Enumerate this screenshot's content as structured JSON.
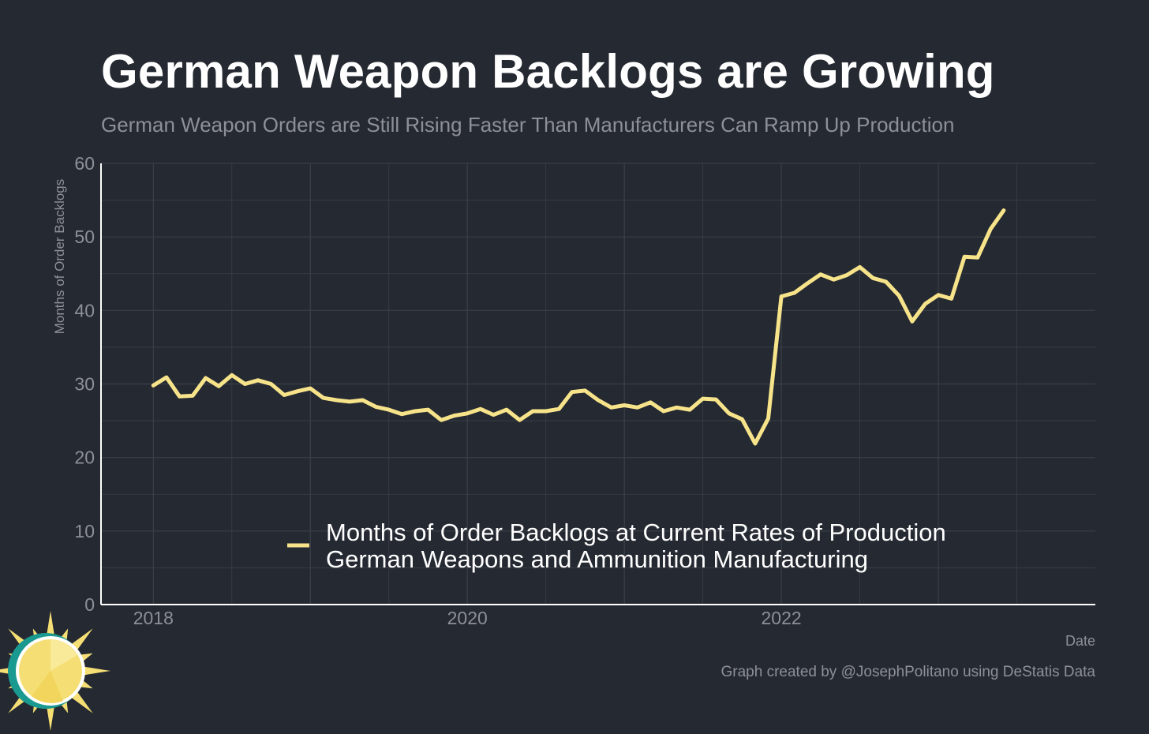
{
  "title": "German Weapon Backlogs are Growing",
  "subtitle": "German Weapon Orders are Still Rising Faster Than Manufacturers Can Ramp Up Production",
  "caption": "Graph created by @JosephPolitano using DeStatis Data",
  "colors": {
    "background": "#252932",
    "line": "#f7e48a",
    "grid": "#3b3f47",
    "axis": "#ffffff",
    "text_muted": "#8e9097",
    "logo_sun": "#f5df74",
    "logo_ring": "#1a9990"
  },
  "chart_data": {
    "type": "line",
    "title": "German Weapon Backlogs are Growing",
    "xlabel": "Date",
    "ylabel": "Months of Order Backlogs",
    "x_ticks": [
      "2018",
      "2020",
      "2022"
    ],
    "y_ticks": [
      0,
      10,
      20,
      30,
      40,
      50,
      60
    ],
    "ylim": [
      0,
      60
    ],
    "xlim": [
      "2017-09",
      "2024-01"
    ],
    "grid": true,
    "legend_placement": "bottom-center",
    "series": [
      {
        "name": "Months of Order Backlogs at Current Rates of Production\nGerman Weapons and Ammunition Manufacturing",
        "x": [
          "2018-01",
          "2018-02",
          "2018-03",
          "2018-04",
          "2018-05",
          "2018-06",
          "2018-07",
          "2018-08",
          "2018-09",
          "2018-10",
          "2018-11",
          "2018-12",
          "2019-01",
          "2019-02",
          "2019-03",
          "2019-04",
          "2019-05",
          "2019-06",
          "2019-07",
          "2019-08",
          "2019-09",
          "2019-10",
          "2019-11",
          "2019-12",
          "2020-01",
          "2020-02",
          "2020-03",
          "2020-04",
          "2020-05",
          "2020-06",
          "2020-07",
          "2020-08",
          "2020-09",
          "2020-10",
          "2020-11",
          "2020-12",
          "2021-01",
          "2021-02",
          "2021-03",
          "2021-04",
          "2021-05",
          "2021-06",
          "2021-07",
          "2021-08",
          "2021-09",
          "2021-10",
          "2021-11",
          "2021-12",
          "2022-01",
          "2022-02",
          "2022-03",
          "2022-04",
          "2022-05",
          "2022-06",
          "2022-07",
          "2022-08",
          "2022-09",
          "2022-10",
          "2022-11",
          "2022-12",
          "2023-01",
          "2023-02",
          "2023-03",
          "2023-04",
          "2023-05",
          "2023-06"
        ],
        "values": [
          29.8,
          30.9,
          28.3,
          28.4,
          30.8,
          29.7,
          31.2,
          30.0,
          30.5,
          30.0,
          28.5,
          29.0,
          29.4,
          28.1,
          27.8,
          27.6,
          27.8,
          26.9,
          26.5,
          25.9,
          26.3,
          26.5,
          25.1,
          25.7,
          26.0,
          26.6,
          25.8,
          26.5,
          25.1,
          26.3,
          26.3,
          26.6,
          28.9,
          29.1,
          27.8,
          26.8,
          27.1,
          26.8,
          27.5,
          26.3,
          26.8,
          26.5,
          28.0,
          27.9,
          26.0,
          25.2,
          21.9,
          25.3,
          41.9,
          42.4,
          43.7,
          44.9,
          44.2,
          44.8,
          45.9,
          44.4,
          43.9,
          42.0,
          38.5,
          40.9,
          42.1,
          41.6,
          47.3,
          47.2,
          51.1,
          53.6
        ]
      }
    ]
  }
}
